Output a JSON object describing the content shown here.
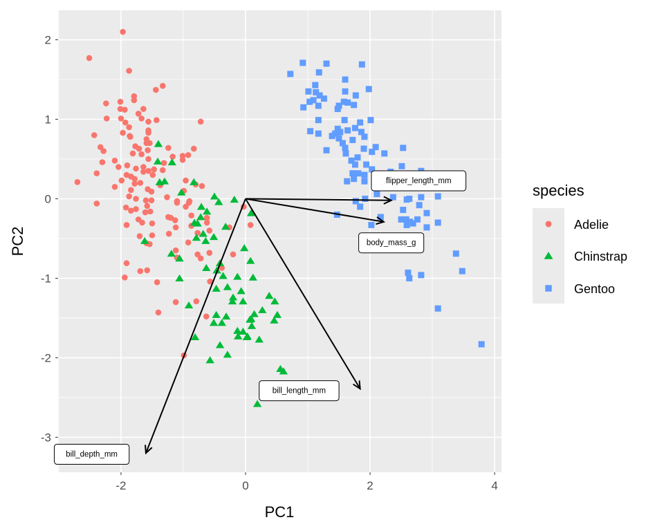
{
  "chart_data": {
    "type": "scatter",
    "title": "",
    "xlabel": "PC1",
    "ylabel": "PC2",
    "xlim": [
      -3.01,
      4.11
    ],
    "ylim": [
      -3.44,
      2.37
    ],
    "xticks": [
      -2,
      0,
      2,
      4
    ],
    "yticks": [
      -3,
      -2,
      -1,
      0,
      1,
      2
    ],
    "xtick_labels": [
      "-2",
      "0",
      "2",
      "4"
    ],
    "ytick_labels": [
      "-3",
      "-2",
      "-1",
      "0",
      "1",
      "2"
    ],
    "grid": true,
    "background": "#EBEBEB",
    "legend": {
      "title": "species",
      "placement": "right"
    },
    "series": [
      {
        "name": "Adelie",
        "shape": "circle",
        "color": "#F8766D",
        "points": [
          [
            -1.97,
            2.1
          ],
          [
            -2.51,
            1.77
          ],
          [
            -1.87,
            1.61
          ],
          [
            -1.44,
            1.37
          ],
          [
            -1.33,
            1.42
          ],
          [
            -1.79,
            1.29
          ],
          [
            -1.79,
            1.24
          ],
          [
            -2.24,
            1.2
          ],
          [
            -2.01,
            1.22
          ],
          [
            -2.01,
            1.13
          ],
          [
            -1.94,
            1.12
          ],
          [
            -1.64,
            1.13
          ],
          [
            -1.72,
            1.07
          ],
          [
            -1.67,
            1.01
          ],
          [
            -2.23,
            1.01
          ],
          [
            -2.0,
            1.01
          ],
          [
            -1.93,
            0.96
          ],
          [
            -1.56,
            0.97
          ],
          [
            -1.43,
            0.99
          ],
          [
            -0.72,
            0.97
          ],
          [
            -1.87,
            0.9
          ],
          [
            -1.56,
            0.86
          ],
          [
            -1.56,
            0.83
          ],
          [
            -1.97,
            0.83
          ],
          [
            -2.43,
            0.8
          ],
          [
            -1.86,
            0.79
          ],
          [
            -1.85,
            0.78
          ],
          [
            -1.59,
            0.75
          ],
          [
            -1.59,
            0.7
          ],
          [
            -1.54,
            0.7
          ],
          [
            -2.33,
            0.65
          ],
          [
            -2.28,
            0.6
          ],
          [
            -1.77,
            0.66
          ],
          [
            -1.71,
            0.63
          ],
          [
            -1.57,
            0.61
          ],
          [
            -1.24,
            0.64
          ],
          [
            -0.83,
            0.63
          ],
          [
            -1.81,
            0.57
          ],
          [
            -1.67,
            0.56
          ],
          [
            -1.17,
            0.53
          ],
          [
            -1.01,
            0.54
          ],
          [
            -0.92,
            0.55
          ],
          [
            -1.01,
            0.49
          ],
          [
            -2.3,
            0.46
          ],
          [
            -2.1,
            0.48
          ],
          [
            -1.56,
            0.5
          ],
          [
            -1.31,
            0.45
          ],
          [
            -2.04,
            0.4
          ],
          [
            -1.9,
            0.42
          ],
          [
            -1.76,
            0.38
          ],
          [
            -1.64,
            0.4
          ],
          [
            -1.64,
            0.34
          ],
          [
            -1.56,
            0.35
          ],
          [
            -1.47,
            0.37
          ],
          [
            -1.49,
            0.3
          ],
          [
            -1.33,
            0.36
          ],
          [
            -2.39,
            0.32
          ],
          [
            -1.91,
            0.3
          ],
          [
            -1.84,
            0.28
          ],
          [
            -1.78,
            0.25
          ],
          [
            -2.7,
            0.21
          ],
          [
            -1.99,
            0.23
          ],
          [
            -1.78,
            0.19
          ],
          [
            -1.69,
            0.2
          ],
          [
            -1.37,
            0.17
          ],
          [
            -0.96,
            0.23
          ],
          [
            -0.8,
            0.18
          ],
          [
            -0.7,
            0.16
          ],
          [
            -2.1,
            0.15
          ],
          [
            -1.84,
            0.11
          ],
          [
            -1.57,
            0.12
          ],
          [
            -1.51,
            0.09
          ],
          [
            -0.99,
            0.1
          ],
          [
            -1.87,
            0.03
          ],
          [
            -1.76,
            0.0
          ],
          [
            -1.26,
            0.02
          ],
          [
            -1.6,
            -0.02
          ],
          [
            -1.51,
            -0.02
          ],
          [
            -1.1,
            -0.03
          ],
          [
            -0.9,
            -0.03
          ],
          [
            -2.39,
            -0.06
          ],
          [
            -1.92,
            -0.11
          ],
          [
            -1.84,
            -0.15
          ],
          [
            -1.76,
            -0.13
          ],
          [
            -1.58,
            -0.09
          ],
          [
            -1.61,
            -0.17
          ],
          [
            -1.53,
            -0.16
          ],
          [
            -1.1,
            -0.05
          ],
          [
            -0.91,
            -0.05
          ],
          [
            -0.96,
            -0.1
          ],
          [
            -0.87,
            -0.21
          ],
          [
            -1.72,
            -0.26
          ],
          [
            -1.66,
            -0.3
          ],
          [
            -1.5,
            -0.31
          ],
          [
            -1.91,
            -0.33
          ],
          [
            -1.24,
            -0.23
          ],
          [
            -1.2,
            -0.24
          ],
          [
            -1.13,
            -0.27
          ],
          [
            -1.12,
            -0.36
          ],
          [
            -0.62,
            -0.24
          ],
          [
            -0.62,
            -0.3
          ],
          [
            -0.87,
            -0.34
          ],
          [
            -1.7,
            -0.47
          ],
          [
            -1.5,
            -0.46
          ],
          [
            -1.59,
            -0.56
          ],
          [
            -1.54,
            -0.57
          ],
          [
            -1.23,
            -0.44
          ],
          [
            -0.77,
            -0.43
          ],
          [
            -0.58,
            -0.4
          ],
          [
            -0.92,
            -0.55
          ],
          [
            -0.26,
            -0.36
          ],
          [
            -1.12,
            -0.65
          ],
          [
            -1.1,
            -0.74
          ],
          [
            -0.77,
            -0.7
          ],
          [
            -0.72,
            -0.75
          ],
          [
            -0.58,
            -0.68
          ],
          [
            -0.2,
            -0.7
          ],
          [
            -1.91,
            -0.81
          ],
          [
            -1.69,
            -0.91
          ],
          [
            -1.58,
            -0.9
          ],
          [
            -1.94,
            -0.99
          ],
          [
            -1.42,
            -1.05
          ],
          [
            -0.57,
            -1.04
          ],
          [
            -0.38,
            -0.87
          ],
          [
            -1.12,
            -1.3
          ],
          [
            -0.79,
            -1.29
          ],
          [
            -1.4,
            -1.43
          ],
          [
            -0.63,
            -1.48
          ],
          [
            -0.99,
            -1.97
          ],
          [
            -0.03,
            -0.1
          ],
          [
            0.08,
            -0.33
          ]
        ]
      },
      {
        "name": "Chinstrap",
        "shape": "triangle",
        "color": "#00BA38",
        "points": [
          [
            -1.4,
            0.69
          ],
          [
            -1.41,
            0.47
          ],
          [
            -1.18,
            0.46
          ],
          [
            -1.38,
            0.21
          ],
          [
            -1.3,
            0.22
          ],
          [
            -0.83,
            0.21
          ],
          [
            -1.03,
            0.08
          ],
          [
            -0.5,
            0.03
          ],
          [
            -0.18,
            -0.01
          ],
          [
            -0.43,
            -0.04
          ],
          [
            -0.71,
            -0.1
          ],
          [
            -0.62,
            -0.16
          ],
          [
            -0.72,
            -0.23
          ],
          [
            -0.82,
            -0.3
          ],
          [
            -0.77,
            -0.31
          ],
          [
            -0.32,
            -0.35
          ],
          [
            -0.68,
            -0.44
          ],
          [
            -0.51,
            -0.48
          ],
          [
            -0.79,
            -0.49
          ],
          [
            -0.64,
            -0.53
          ],
          [
            -1.62,
            -0.53
          ],
          [
            -1.19,
            -0.69
          ],
          [
            -1.06,
            -0.75
          ],
          [
            -0.02,
            -0.62
          ],
          [
            0.08,
            -0.78
          ],
          [
            -0.41,
            -0.81
          ],
          [
            -0.46,
            -0.9
          ],
          [
            -0.63,
            -0.87
          ],
          [
            -0.36,
            -0.97
          ],
          [
            -0.13,
            -0.98
          ],
          [
            -1.06,
            -1.0
          ],
          [
            -0.47,
            -1.13
          ],
          [
            -0.29,
            -1.11
          ],
          [
            -0.07,
            -1.16
          ],
          [
            -0.2,
            -1.24
          ],
          [
            -0.21,
            -1.29
          ],
          [
            -0.04,
            -1.29
          ],
          [
            -0.91,
            -1.34
          ],
          [
            -0.47,
            -1.46
          ],
          [
            -0.31,
            -1.48
          ],
          [
            -0.51,
            -1.56
          ],
          [
            -0.38,
            -1.56
          ],
          [
            0.07,
            -1.52
          ],
          [
            -0.13,
            -1.66
          ],
          [
            -0.04,
            -1.67
          ],
          [
            -0.12,
            -1.73
          ],
          [
            0.02,
            -1.74
          ],
          [
            -0.81,
            -1.74
          ],
          [
            -0.41,
            -1.84
          ],
          [
            -0.29,
            -1.96
          ],
          [
            -0.57,
            -2.03
          ],
          [
            0.09,
            -0.18
          ],
          [
            0.12,
            -0.99
          ],
          [
            0.38,
            -1.22
          ],
          [
            0.47,
            -1.29
          ],
          [
            0.27,
            -1.4
          ],
          [
            0.14,
            -1.45
          ],
          [
            0.09,
            -1.51
          ],
          [
            0.1,
            -1.6
          ],
          [
            0.51,
            -1.46
          ],
          [
            0.46,
            -1.53
          ],
          [
            0.03,
            -1.73
          ],
          [
            0.22,
            -1.77
          ],
          [
            0.56,
            -2.14
          ],
          [
            0.61,
            -2.17
          ],
          [
            0.19,
            -2.58
          ]
        ]
      },
      {
        "name": "Gentoo",
        "shape": "square",
        "color": "#619CFF",
        "points": [
          [
            0.92,
            1.71
          ],
          [
            1.3,
            1.7
          ],
          [
            1.87,
            1.69
          ],
          [
            0.72,
            1.57
          ],
          [
            1.18,
            1.59
          ],
          [
            1.6,
            1.5
          ],
          [
            1.12,
            1.43
          ],
          [
            1.98,
            1.38
          ],
          [
            1.01,
            1.35
          ],
          [
            1.13,
            1.34
          ],
          [
            1.19,
            1.3
          ],
          [
            1.6,
            1.35
          ],
          [
            1.77,
            1.3
          ],
          [
            1.26,
            1.26
          ],
          [
            1.03,
            1.22
          ],
          [
            1.09,
            1.24
          ],
          [
            0.93,
            1.15
          ],
          [
            1.17,
            1.17
          ],
          [
            1.58,
            1.22
          ],
          [
            1.64,
            1.21
          ],
          [
            1.74,
            1.18
          ],
          [
            1.48,
            1.13
          ],
          [
            1.5,
            1.17
          ],
          [
            1.17,
            0.99
          ],
          [
            1.59,
            0.99
          ],
          [
            1.84,
            0.96
          ],
          [
            2.01,
            0.99
          ],
          [
            1.04,
            0.85
          ],
          [
            1.17,
            0.82
          ],
          [
            1.48,
            0.88
          ],
          [
            1.44,
            0.82
          ],
          [
            1.39,
            0.79
          ],
          [
            1.52,
            0.84
          ],
          [
            1.64,
            0.86
          ],
          [
            1.76,
            0.89
          ],
          [
            1.86,
            0.84
          ],
          [
            1.91,
            0.78
          ],
          [
            1.5,
            0.76
          ],
          [
            1.56,
            0.7
          ],
          [
            1.72,
            0.74
          ],
          [
            1.3,
            0.61
          ],
          [
            1.6,
            0.64
          ],
          [
            1.61,
            0.57
          ],
          [
            1.9,
            0.63
          ],
          [
            2.03,
            0.59
          ],
          [
            2.09,
            0.65
          ],
          [
            2.23,
            0.57
          ],
          [
            2.53,
            0.64
          ],
          [
            1.8,
            0.52
          ],
          [
            1.7,
            0.48
          ],
          [
            1.76,
            0.43
          ],
          [
            1.94,
            0.43
          ],
          [
            2.03,
            0.37
          ],
          [
            2.51,
            0.41
          ],
          [
            1.72,
            0.32
          ],
          [
            1.81,
            0.32
          ],
          [
            1.91,
            0.3
          ],
          [
            1.63,
            0.22
          ],
          [
            1.74,
            0.25
          ],
          [
            1.91,
            0.22
          ],
          [
            2.33,
            0.34
          ],
          [
            2.82,
            0.35
          ],
          [
            2.11,
            0.06
          ],
          [
            2.37,
            0.02
          ],
          [
            2.59,
            -0.01
          ],
          [
            2.63,
            0.0
          ],
          [
            2.82,
            0.02
          ],
          [
            3.09,
            0.03
          ],
          [
            1.77,
            -0.03
          ],
          [
            1.92,
            0.0
          ],
          [
            1.84,
            -0.1
          ],
          [
            2.53,
            -0.14
          ],
          [
            2.79,
            -0.08
          ],
          [
            2.91,
            -0.18
          ],
          [
            1.47,
            -0.2
          ],
          [
            2.17,
            -0.23
          ],
          [
            3.09,
            -0.3
          ],
          [
            2.5,
            -0.26
          ],
          [
            2.58,
            -0.26
          ],
          [
            2.64,
            -0.29
          ],
          [
            2.76,
            -0.26
          ],
          [
            2.59,
            -0.33
          ],
          [
            2.69,
            -0.31
          ],
          [
            2.91,
            -0.36
          ],
          [
            2.02,
            -0.33
          ],
          [
            2.78,
            -0.63
          ],
          [
            3.38,
            -0.69
          ],
          [
            3.48,
            -0.91
          ],
          [
            2.61,
            -0.93
          ],
          [
            2.63,
            -1.0
          ],
          [
            2.82,
            -0.96
          ],
          [
            3.09,
            -1.38
          ],
          [
            3.79,
            -1.83
          ]
        ]
      }
    ],
    "loadings": [
      {
        "name": "flipper_length_mm",
        "x": 2.34,
        "y": -0.02,
        "label_x": 2.78,
        "label_y": 0.23
      },
      {
        "name": "body_mass_g",
        "x": 2.22,
        "y": -0.29,
        "label_x": 2.34,
        "label_y": -0.55
      },
      {
        "name": "bill_length_mm",
        "x": 1.84,
        "y": -2.39,
        "label_x": 0.86,
        "label_y": -2.41
      },
      {
        "name": "bill_depth_mm",
        "x": -1.6,
        "y": -3.2,
        "label_x": -2.47,
        "label_y": -3.21
      }
    ]
  }
}
